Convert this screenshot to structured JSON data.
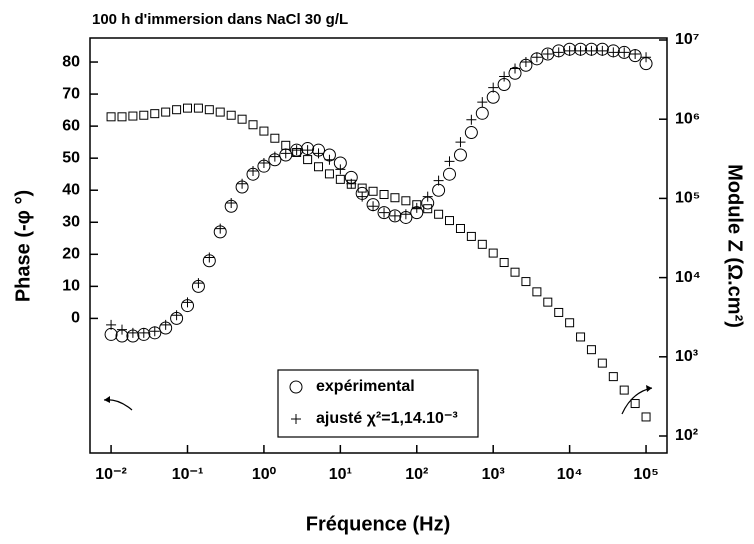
{
  "chart_data": {
    "type": "scatter",
    "title": "100 h d'immersion dans NaCl 30 g/L",
    "xlabel": "Fréquence (Hz)",
    "ylabel": "Phase (-φ °)",
    "y2label": "Module Z (Ω.cm²)",
    "xscale": "log",
    "y2scale": "log",
    "xlim": [
      0.0053,
      188000
    ],
    "ylim": [
      -42,
      87.5
    ],
    "y2lim": [
      61,
      10600000
    ],
    "xticks": [
      {
        "value": 0.01,
        "label": "10⁻²"
      },
      {
        "value": 0.1,
        "label": "10⁻¹"
      },
      {
        "value": 1,
        "label": "10⁰"
      },
      {
        "value": 10,
        "label": "10¹"
      },
      {
        "value": 100,
        "label": "10²"
      },
      {
        "value": 1000,
        "label": "10³"
      },
      {
        "value": 10000,
        "label": "10⁴"
      },
      {
        "value": 100000,
        "label": "10⁵"
      }
    ],
    "yticks": [
      0,
      10,
      20,
      30,
      40,
      50,
      60,
      70,
      80
    ],
    "y2ticks": [
      {
        "value": 100,
        "label": "10²"
      },
      {
        "value": 1000,
        "label": "10³"
      },
      {
        "value": 10000,
        "label": "10⁴"
      },
      {
        "value": 100000,
        "label": "10⁵"
      },
      {
        "value": 1000000,
        "label": "10⁶"
      },
      {
        "value": 10000000,
        "label": "10⁷"
      }
    ],
    "x": [
      0.01,
      0.0139,
      0.0193,
      0.0268,
      0.0373,
      0.0518,
      0.072,
      0.1,
      0.139,
      0.193,
      0.268,
      0.373,
      0.518,
      0.72,
      1,
      1.39,
      1.93,
      2.68,
      3.73,
      5.18,
      7.2,
      10,
      13.9,
      19.3,
      26.8,
      37.3,
      51.8,
      72,
      100,
      139,
      193,
      268,
      373,
      518,
      720,
      1000,
      1390,
      1930,
      2680,
      3730,
      5180,
      7200,
      10000,
      13900,
      19300,
      26800,
      37300,
      51800,
      72000,
      100000
    ],
    "series": [
      {
        "name": "expérimental",
        "marker": "circle",
        "color": "#000000",
        "values": [
          -5,
          -5.5,
          -5.5,
          -5,
          -4.5,
          -3,
          0,
          4,
          10,
          18,
          27,
          35,
          41,
          45,
          47.5,
          49.5,
          51,
          52.5,
          53,
          52.5,
          51,
          48.5,
          44,
          39,
          35.5,
          33,
          32,
          31.5,
          33,
          36,
          40,
          45,
          51,
          58,
          64,
          69,
          73,
          76.5,
          79,
          81,
          82.5,
          83.5,
          84,
          84,
          84,
          84,
          83.5,
          83,
          82,
          79.5
        ]
      },
      {
        "name": "ajusté χ²=1,14.10⁻³",
        "marker": "plus",
        "color": "#000000",
        "values": [
          -2,
          -3.5,
          -4.5,
          -4.5,
          -4,
          -2,
          1,
          5,
          11,
          19,
          28,
          36,
          42,
          46,
          48.5,
          50.5,
          51.5,
          52.5,
          52.5,
          51.5,
          49.5,
          46.5,
          42,
          38,
          35,
          33,
          32,
          32.5,
          34.5,
          38,
          43,
          49,
          55,
          62,
          67.5,
          72,
          75.5,
          78,
          80,
          81.5,
          82.5,
          83,
          83.5,
          83.5,
          83.5,
          83.5,
          83,
          83,
          82.5,
          81.5
        ]
      },
      {
        "marker": "square",
        "color": "#000000",
        "axis": "y2",
        "values": [
          1072000,
          1072000,
          1096000,
          1122000,
          1175000,
          1230000,
          1318000,
          1380000,
          1380000,
          1318000,
          1230000,
          1122000,
          1000000,
          851000,
          708000,
          575000,
          468000,
          380000,
          309000,
          251000,
          204000,
          174000,
          151000,
          135000,
          123000,
          112000,
          102000,
          93300,
          83200,
          74100,
          63100,
          52500,
          41700,
          33100,
          26300,
          20400,
          15500,
          11700,
          8910,
          6610,
          4900,
          3630,
          2690,
          1780,
          1230,
          832,
          562,
          380,
          257,
          174
        ]
      }
    ]
  }
}
